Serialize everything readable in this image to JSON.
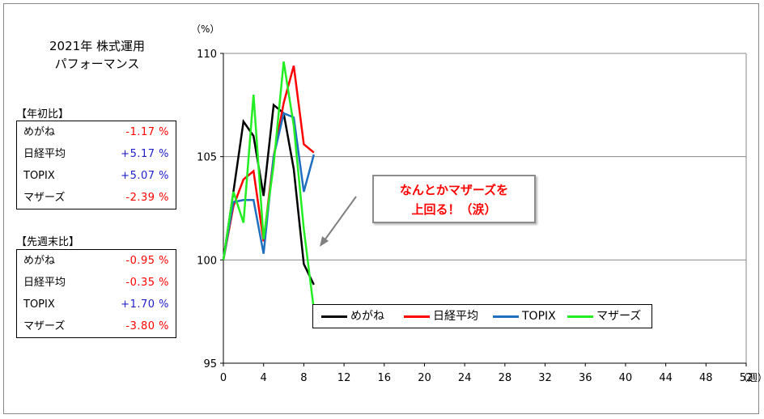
{
  "chart_data": {
    "type": "line",
    "title": [
      "2021年 株式運用",
      "パフォーマンス"
    ],
    "ylabel": "（%）",
    "xlabel": "（週）",
    "xlim": [
      0,
      52
    ],
    "ylim": [
      95,
      110
    ],
    "x_ticks": [
      0,
      4,
      8,
      12,
      16,
      20,
      24,
      28,
      32,
      36,
      40,
      44,
      48,
      52
    ],
    "y_ticks": [
      95,
      100,
      105,
      110
    ],
    "x_tick_labels": [
      "0",
      "4",
      "8",
      "12",
      "16",
      "20",
      "24",
      "28",
      "32",
      "36",
      "40",
      "44",
      "48",
      "52"
    ],
    "y_tick_labels": [
      "95",
      "100",
      "105",
      "110"
    ],
    "grid": "horizontal",
    "legend_position": "bottom-center",
    "x": [
      0,
      1,
      2,
      3,
      4,
      5,
      6,
      7,
      8,
      9
    ],
    "series": [
      {
        "name": "めがね",
        "color": "#000000",
        "values": [
          100.0,
          103.3,
          106.7,
          106.0,
          103.1,
          107.5,
          107.1,
          104.4,
          99.8,
          98.8
        ]
      },
      {
        "name": "日経平均",
        "color": "#ff0000",
        "values": [
          100.0,
          102.6,
          103.9,
          104.3,
          100.9,
          105.0,
          107.6,
          109.4,
          105.6,
          105.2
        ]
      },
      {
        "name": "TOPIX",
        "color": "#1f6fc0",
        "values": [
          100.0,
          102.8,
          102.9,
          102.9,
          100.3,
          105.0,
          107.1,
          106.9,
          103.3,
          105.1
        ]
      },
      {
        "name": "マザーズ",
        "color": "#22ee22",
        "values": [
          100.0,
          103.3,
          101.8,
          108.0,
          101.0,
          104.6,
          109.6,
          106.5,
          101.5,
          97.6
        ]
      }
    ],
    "annotation": [
      "なんとかマザーズを",
      "上回る！（涙）"
    ]
  },
  "ytd_table": {
    "heading": "【年初比】",
    "rows": [
      {
        "label": "めがね",
        "value": "-1.17 %",
        "color": "#ff0000"
      },
      {
        "label": "日経平均",
        "value": "+5.17 %",
        "color": "#2020c8"
      },
      {
        "label": "TOPIX",
        "value": "+5.07 %",
        "color": "#2020c8"
      },
      {
        "label": "マザーズ",
        "value": "-2.39 %",
        "color": "#ff0000"
      }
    ]
  },
  "weekly_table": {
    "heading": "【先週末比】",
    "rows": [
      {
        "label": "めがね",
        "value": "-0.95 %",
        "color": "#ff0000"
      },
      {
        "label": "日経平均",
        "value": "-0.35 %",
        "color": "#ff0000"
      },
      {
        "label": "TOPIX",
        "value": "+1.70 %",
        "color": "#2020c8"
      },
      {
        "label": "マザーズ",
        "value": "-3.80 %",
        "color": "#ff0000"
      }
    ]
  }
}
